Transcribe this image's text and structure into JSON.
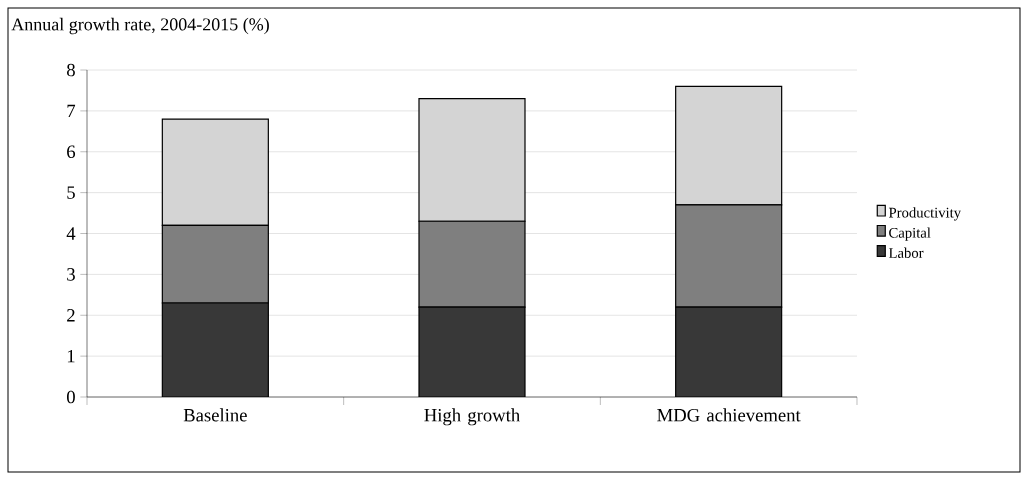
{
  "chart_data": {
    "type": "bar",
    "title": "Annual growth rate, 2004-2015 (%)",
    "categories": [
      "Baseline",
      "High growth",
      "MDG achievement"
    ],
    "series": [
      {
        "name": "Labor",
        "color": "#383838",
        "values": [
          2.3,
          2.2,
          2.2
        ]
      },
      {
        "name": "Capital",
        "color": "#7f7f7f",
        "values": [
          1.9,
          2.1,
          2.5
        ]
      },
      {
        "name": "Productivity",
        "color": "#d4d4d4",
        "values": [
          2.6,
          3.0,
          2.9
        ]
      }
    ],
    "stacked": true,
    "ylim": [
      0,
      8
    ],
    "yticks": [
      0,
      1,
      2,
      3,
      4,
      5,
      6,
      7,
      8
    ],
    "grid": "y",
    "legend": "right"
  }
}
